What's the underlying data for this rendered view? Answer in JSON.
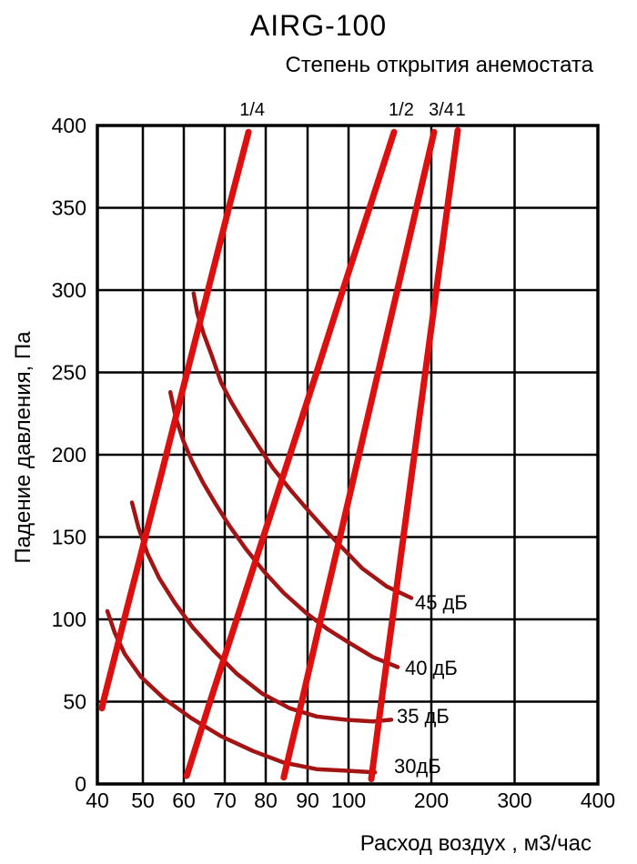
{
  "chart_data": {
    "type": "line",
    "title": "AIRG-100",
    "subtitle": "Степень открытия анемостата",
    "xlabel": "Расход воздух , м3/час",
    "ylabel": "Падение давления, Па",
    "xlim": [
      40,
      400
    ],
    "ylim": [
      0,
      400
    ],
    "x_ticks": [
      40,
      50,
      60,
      70,
      80,
      90,
      100,
      200,
      300,
      400
    ],
    "y_ticks": [
      0,
      50,
      100,
      150,
      200,
      250,
      300,
      350,
      400
    ],
    "x_scale": "segmented: equal pixel steps for 40-100 by 10, then 100-400 by 100",
    "grid": "on",
    "colors": {
      "opening_line": "#dd0f0f",
      "noise_curve": "#a31414",
      "grid": "#000000",
      "text": "#000000",
      "background": "#ffffff"
    },
    "opening_lines": [
      {
        "label": "1/4",
        "label_flow": 76.7,
        "points": [
          [
            41,
            46
          ],
          [
            41.3,
            50
          ],
          [
            45.9,
            100
          ],
          [
            50.6,
            150
          ],
          [
            55.7,
            200
          ],
          [
            60.8,
            250
          ],
          [
            65.9,
            300
          ],
          [
            71,
            350
          ],
          [
            75.8,
            396
          ]
        ]
      },
      {
        "label": "1/2",
        "label_flow": 163.7,
        "points": [
          [
            60.7,
            5
          ],
          [
            66.4,
            50
          ],
          [
            72.9,
            100
          ],
          [
            79.4,
            150
          ],
          [
            85.8,
            200
          ],
          [
            92.2,
            250
          ],
          [
            98.6,
            300
          ],
          [
            125.4,
            350
          ],
          [
            154.9,
            396
          ]
        ]
      },
      {
        "label": "3/4",
        "label_flow": 212.1,
        "points": [
          [
            84.3,
            4
          ],
          [
            88.6,
            50
          ],
          [
            93.2,
            100
          ],
          [
            97.9,
            150
          ],
          [
            112.6,
            200
          ],
          [
            135.7,
            250
          ],
          [
            158.9,
            300
          ],
          [
            182,
            350
          ],
          [
            203.3,
            396
          ]
        ]
      },
      {
        "label": "1",
        "label_flow": 235.2,
        "points": [
          [
            127.5,
            3
          ],
          [
            139.7,
            50
          ],
          [
            153,
            100
          ],
          [
            166.3,
            150
          ],
          [
            179.5,
            200
          ],
          [
            192.8,
            250
          ],
          [
            206,
            300
          ],
          [
            219.2,
            350
          ],
          [
            231.7,
            397
          ]
        ]
      }
    ],
    "noise_curves": [
      {
        "label": "45 дБ",
        "label_at": [
          180.2,
          110.5
        ],
        "points": [
          [
            62.4,
            298
          ],
          [
            63.3,
            286
          ],
          [
            64.9,
            273
          ],
          [
            66.7,
            261
          ],
          [
            69.1,
            244
          ],
          [
            71.6,
            232
          ],
          [
            74.7,
            219
          ],
          [
            78,
            206
          ],
          [
            81.7,
            192
          ],
          [
            86.1,
            178
          ],
          [
            90.9,
            164
          ],
          [
            96.7,
            148
          ],
          [
            116.5,
            131
          ],
          [
            146.2,
            120
          ],
          [
            175.8,
            113
          ]
        ]
      },
      {
        "label": "40 дБ",
        "label_at": [
          168.1,
          70.7
        ],
        "points": [
          [
            56.7,
            238
          ],
          [
            58,
            223
          ],
          [
            59.8,
            209
          ],
          [
            62,
            196
          ],
          [
            64.7,
            183
          ],
          [
            67.8,
            170
          ],
          [
            71.1,
            157
          ],
          [
            75.1,
            143
          ],
          [
            79.6,
            129
          ],
          [
            84.3,
            116
          ],
          [
            89.6,
            104
          ],
          [
            94.9,
            94
          ],
          [
            100,
            86
          ],
          [
            129.7,
            77
          ],
          [
            159.3,
            71
          ]
        ]
      },
      {
        "label": "35 дБ",
        "label_at": [
          158.2,
          41.4
        ],
        "points": [
          [
            47.6,
            171
          ],
          [
            49,
            156
          ],
          [
            51.1,
            140
          ],
          [
            54,
            125
          ],
          [
            57.8,
            110
          ],
          [
            62.2,
            95
          ],
          [
            67.3,
            81
          ],
          [
            72.9,
            67
          ],
          [
            79.1,
            55
          ],
          [
            85.7,
            46
          ],
          [
            92.2,
            41
          ],
          [
            99.3,
            39
          ],
          [
            129.7,
            38
          ],
          [
            151.6,
            39
          ]
        ]
      },
      {
        "label": "30дБ",
        "label_at": [
          154.9,
          11
        ],
        "points": [
          [
            42.2,
            105
          ],
          [
            43.8,
            92
          ],
          [
            46,
            79
          ],
          [
            49.6,
            65
          ],
          [
            55.1,
            52
          ],
          [
            61.8,
            40
          ],
          [
            69.1,
            29
          ],
          [
            76.9,
            20
          ],
          [
            84.3,
            13
          ],
          [
            92.2,
            9
          ],
          [
            99.8,
            8
          ],
          [
            131.9,
            7
          ]
        ]
      }
    ]
  }
}
